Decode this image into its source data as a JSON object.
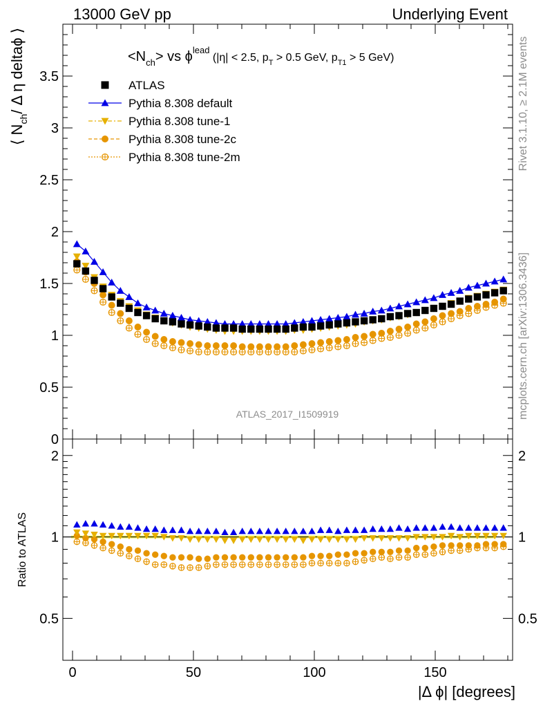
{
  "header": {
    "left": "13000 GeV pp",
    "right": "Underlying Event"
  },
  "side_labels": {
    "rivet": "Rivet 3.1.10, ≥ 2.1M events",
    "mcplots": "mcplots.cern.ch [arXiv:1306.3436]"
  },
  "title": {
    "main": "<N",
    "main_sub": "ch",
    "mid": "> vs ϕ",
    "mid_sup": "lead",
    "cut_a": " (|η| < 2.5, p",
    "cut_a_sub": "T",
    "cut_b": " > 0.5 GeV, p",
    "cut_b_sub": "T1",
    "cut_c": " > 5 GeV)"
  },
  "watermark": "ATLAS_2017_I1509919",
  "colors": {
    "atlas": "#000000",
    "default": "#0000e6",
    "tune1": "#e6b000",
    "tune2c": "#e69500",
    "tune2m": "#e69500",
    "ratio_band": "#ffff66",
    "axis": "#000000"
  },
  "chart_data": [
    {
      "type": "scatter",
      "panel": "main",
      "ylabel_parts": {
        "a": "⟨ N",
        "sub": "ch",
        "b": "/ Δ η deltaϕ ⟩"
      },
      "xlim": [
        -4,
        182
      ],
      "ylim": [
        0,
        4.0
      ],
      "yticks": [
        0,
        0.5,
        1,
        1.5,
        2,
        2.5,
        3,
        3.5
      ],
      "ytick_labels": [
        "0",
        "0.5",
        "1",
        "1.5",
        "2",
        "2.5",
        "3",
        "3.5"
      ],
      "legend_position": "top-left",
      "x": [
        1.8,
        5.4,
        9,
        12.6,
        16.2,
        19.8,
        23.4,
        27,
        30.6,
        34.2,
        37.8,
        41.4,
        45,
        48.6,
        52.2,
        55.8,
        59.4,
        63,
        66.6,
        70.2,
        73.8,
        77.4,
        81,
        84.6,
        88.2,
        91.8,
        95.4,
        99,
        102.6,
        106.2,
        109.8,
        113.4,
        117,
        120.6,
        124.2,
        127.8,
        131.4,
        135,
        138.6,
        142.2,
        145.8,
        149.4,
        153,
        156.6,
        160.2,
        163.8,
        167.4,
        171,
        174.6,
        178.2
      ],
      "series": [
        {
          "name": "ATLAS",
          "key": "atlas",
          "marker": "square",
          "filled": true,
          "values": [
            1.69,
            1.62,
            1.53,
            1.45,
            1.37,
            1.31,
            1.26,
            1.22,
            1.19,
            1.16,
            1.14,
            1.13,
            1.11,
            1.1,
            1.09,
            1.08,
            1.07,
            1.07,
            1.07,
            1.06,
            1.06,
            1.06,
            1.06,
            1.06,
            1.06,
            1.07,
            1.08,
            1.08,
            1.09,
            1.1,
            1.11,
            1.12,
            1.13,
            1.14,
            1.15,
            1.16,
            1.18,
            1.19,
            1.21,
            1.22,
            1.24,
            1.26,
            1.28,
            1.3,
            1.33,
            1.35,
            1.37,
            1.39,
            1.41,
            1.43
          ]
        },
        {
          "name": "Pythia 8.308 default",
          "key": "default",
          "marker": "triangle-up",
          "filled": true,
          "line": "solid",
          "values": [
            1.88,
            1.81,
            1.71,
            1.61,
            1.51,
            1.43,
            1.37,
            1.31,
            1.27,
            1.24,
            1.21,
            1.19,
            1.17,
            1.15,
            1.14,
            1.13,
            1.12,
            1.11,
            1.11,
            1.11,
            1.11,
            1.11,
            1.11,
            1.11,
            1.11,
            1.12,
            1.13,
            1.14,
            1.15,
            1.16,
            1.17,
            1.18,
            1.2,
            1.21,
            1.23,
            1.24,
            1.26,
            1.28,
            1.3,
            1.32,
            1.34,
            1.36,
            1.39,
            1.41,
            1.43,
            1.46,
            1.48,
            1.5,
            1.52,
            1.54
          ]
        },
        {
          "name": "Pythia 8.308 tune-1",
          "key": "tune1",
          "marker": "triangle-down",
          "filled": true,
          "line": "dashdot",
          "values": [
            1.76,
            1.67,
            1.56,
            1.47,
            1.39,
            1.33,
            1.28,
            1.24,
            1.2,
            1.17,
            1.14,
            1.12,
            1.1,
            1.08,
            1.07,
            1.06,
            1.05,
            1.04,
            1.04,
            1.04,
            1.04,
            1.04,
            1.04,
            1.04,
            1.04,
            1.05,
            1.05,
            1.06,
            1.07,
            1.08,
            1.09,
            1.1,
            1.11,
            1.13,
            1.14,
            1.15,
            1.17,
            1.18,
            1.2,
            1.22,
            1.24,
            1.26,
            1.28,
            1.31,
            1.33,
            1.36,
            1.38,
            1.4,
            1.42,
            1.44
          ]
        },
        {
          "name": "Pythia 8.308 tune-2c",
          "key": "tune2c",
          "marker": "circle",
          "filled": true,
          "line": "dashed",
          "values": [
            1.71,
            1.61,
            1.5,
            1.39,
            1.29,
            1.21,
            1.14,
            1.08,
            1.03,
            0.99,
            0.96,
            0.94,
            0.93,
            0.92,
            0.91,
            0.9,
            0.9,
            0.9,
            0.9,
            0.89,
            0.89,
            0.89,
            0.89,
            0.89,
            0.89,
            0.9,
            0.91,
            0.92,
            0.93,
            0.94,
            0.95,
            0.96,
            0.98,
            0.99,
            1.01,
            1.02,
            1.04,
            1.06,
            1.08,
            1.11,
            1.13,
            1.16,
            1.19,
            1.21,
            1.23,
            1.26,
            1.28,
            1.3,
            1.32,
            1.35
          ]
        },
        {
          "name": "Pythia 8.308 tune-2m",
          "key": "tune2m",
          "marker": "circle-open",
          "filled": false,
          "line": "dotted",
          "values": [
            1.63,
            1.54,
            1.43,
            1.32,
            1.22,
            1.14,
            1.07,
            1.01,
            0.96,
            0.92,
            0.9,
            0.88,
            0.86,
            0.85,
            0.84,
            0.84,
            0.84,
            0.84,
            0.84,
            0.84,
            0.84,
            0.84,
            0.84,
            0.84,
            0.84,
            0.84,
            0.85,
            0.86,
            0.87,
            0.88,
            0.89,
            0.9,
            0.92,
            0.93,
            0.95,
            0.97,
            0.98,
            1.0,
            1.02,
            1.05,
            1.07,
            1.1,
            1.13,
            1.16,
            1.19,
            1.21,
            1.24,
            1.27,
            1.29,
            1.31
          ]
        }
      ]
    },
    {
      "type": "scatter",
      "panel": "ratio",
      "ylabel": "Ratio to ATLAS",
      "xlabel": "|Δ ϕ| [degrees]",
      "xlim": [
        -4,
        182
      ],
      "ylim": [
        0.35,
        2.3
      ],
      "yticks": [
        0.5,
        1,
        2
      ],
      "ytick_labels": [
        "0.5",
        "1",
        "2"
      ],
      "xticks": [
        0,
        50,
        100,
        150
      ],
      "xtick_labels": [
        "0",
        "50",
        "100",
        "150"
      ],
      "log_y": true,
      "series": [
        {
          "name": "Pythia 8.308 default",
          "key": "default",
          "marker": "triangle-up",
          "filled": true,
          "values": [
            1.11,
            1.12,
            1.12,
            1.11,
            1.1,
            1.09,
            1.09,
            1.08,
            1.07,
            1.07,
            1.06,
            1.06,
            1.06,
            1.05,
            1.05,
            1.05,
            1.05,
            1.04,
            1.04,
            1.05,
            1.05,
            1.05,
            1.05,
            1.05,
            1.05,
            1.05,
            1.05,
            1.05,
            1.06,
            1.06,
            1.05,
            1.06,
            1.06,
            1.06,
            1.07,
            1.07,
            1.07,
            1.08,
            1.07,
            1.08,
            1.08,
            1.08,
            1.09,
            1.09,
            1.08,
            1.08,
            1.08,
            1.08,
            1.08,
            1.08
          ]
        },
        {
          "name": "Pythia 8.308 tune-1",
          "key": "tune1",
          "marker": "triangle-down",
          "filled": true,
          "values": [
            1.04,
            1.03,
            1.02,
            1.01,
            1.01,
            1.01,
            1.01,
            1.01,
            1.01,
            1.01,
            1.0,
            0.99,
            0.99,
            0.98,
            0.98,
            0.98,
            0.98,
            0.97,
            0.97,
            0.98,
            0.98,
            0.98,
            0.98,
            0.98,
            0.98,
            0.98,
            0.97,
            0.98,
            0.98,
            0.98,
            0.98,
            0.98,
            0.98,
            0.99,
            0.99,
            0.99,
            0.99,
            0.99,
            0.99,
            1.0,
            1.0,
            1.0,
            1.0,
            1.01,
            1.0,
            1.01,
            1.01,
            1.01,
            1.01,
            1.01
          ]
        },
        {
          "name": "Pythia 8.308 tune-2c",
          "key": "tune2c",
          "marker": "circle",
          "filled": true,
          "values": [
            1.01,
            0.99,
            0.98,
            0.96,
            0.94,
            0.92,
            0.9,
            0.89,
            0.87,
            0.86,
            0.85,
            0.84,
            0.84,
            0.84,
            0.83,
            0.83,
            0.84,
            0.84,
            0.84,
            0.84,
            0.84,
            0.84,
            0.84,
            0.84,
            0.84,
            0.84,
            0.84,
            0.85,
            0.85,
            0.85,
            0.86,
            0.86,
            0.87,
            0.87,
            0.88,
            0.88,
            0.88,
            0.89,
            0.89,
            0.91,
            0.91,
            0.92,
            0.93,
            0.93,
            0.93,
            0.93,
            0.93,
            0.94,
            0.94,
            0.94
          ]
        },
        {
          "name": "Pythia 8.308 tune-2m",
          "key": "tune2m",
          "marker": "circle-open",
          "filled": false,
          "values": [
            0.96,
            0.95,
            0.93,
            0.91,
            0.89,
            0.87,
            0.85,
            0.83,
            0.81,
            0.79,
            0.79,
            0.78,
            0.77,
            0.77,
            0.77,
            0.78,
            0.79,
            0.79,
            0.79,
            0.79,
            0.79,
            0.79,
            0.79,
            0.79,
            0.79,
            0.79,
            0.79,
            0.8,
            0.8,
            0.8,
            0.8,
            0.8,
            0.81,
            0.82,
            0.83,
            0.84,
            0.83,
            0.84,
            0.84,
            0.86,
            0.86,
            0.87,
            0.88,
            0.89,
            0.89,
            0.9,
            0.91,
            0.91,
            0.91,
            0.92
          ]
        }
      ]
    }
  ]
}
